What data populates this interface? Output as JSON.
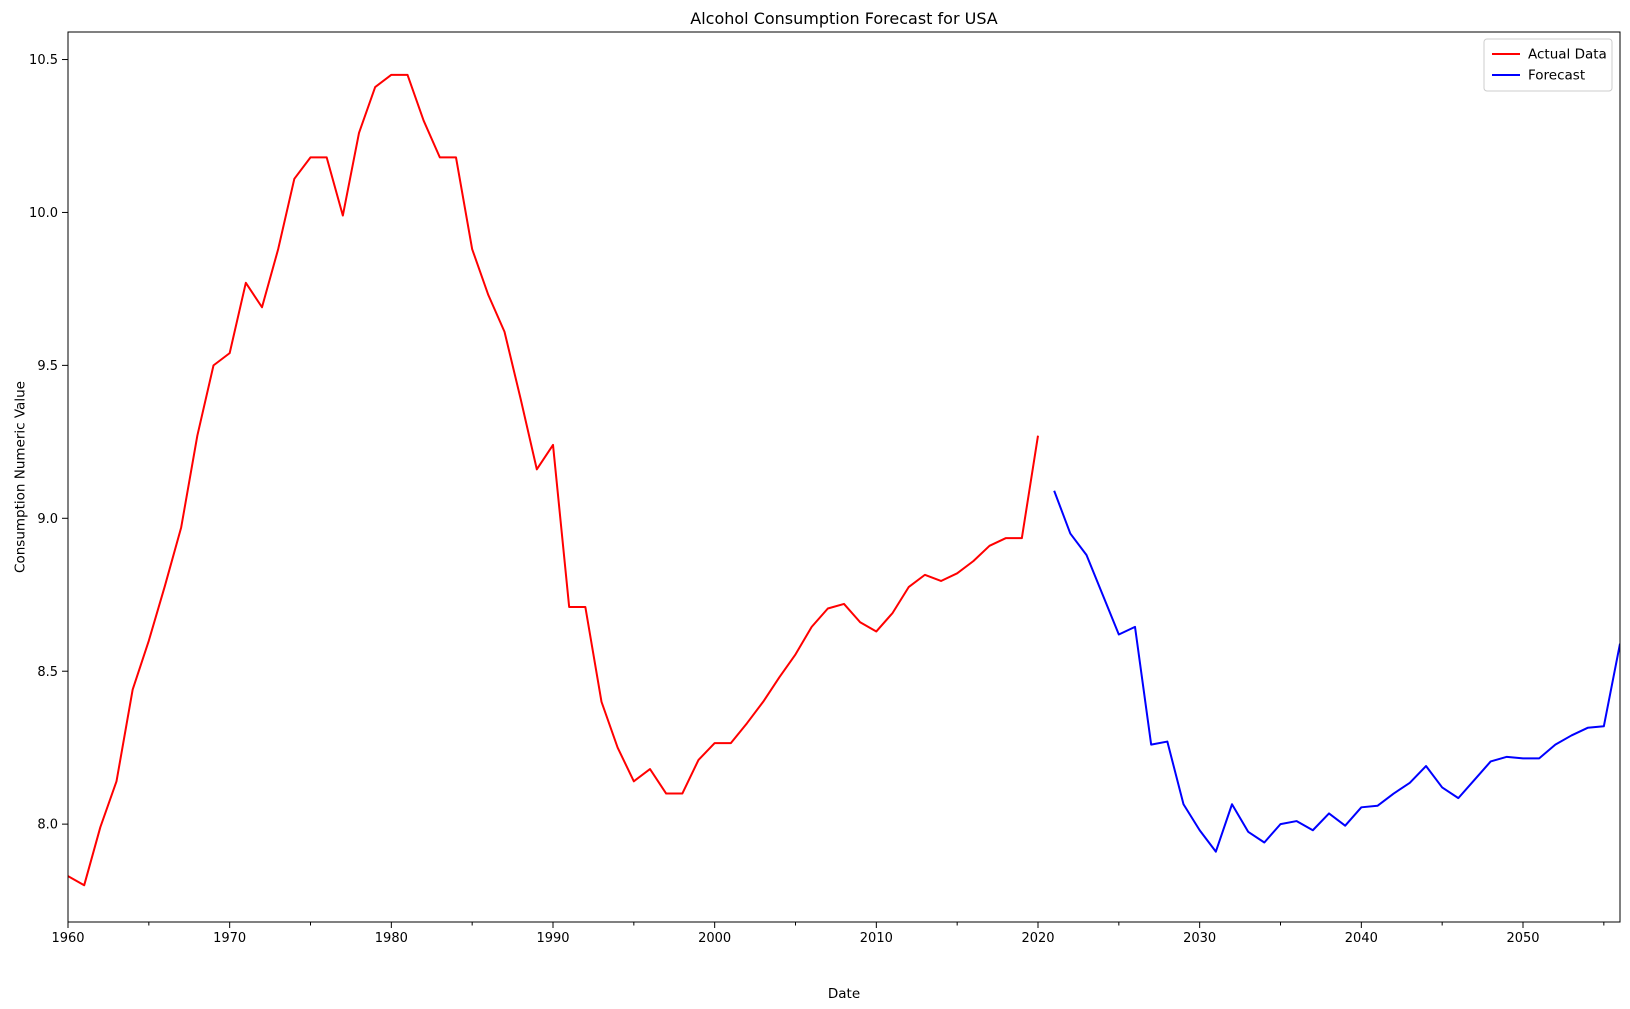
{
  "chart_data": {
    "type": "line",
    "title": "Alcohol Consumption Forecast for USA",
    "xlabel": "Date",
    "ylabel": "Consumption Numeric Value",
    "xlim": [
      1960,
      2056
    ],
    "ylim": [
      7.68,
      10.59
    ],
    "x_ticks": [
      1960,
      1970,
      1980,
      1990,
      2000,
      2010,
      2020,
      2030,
      2040,
      2050
    ],
    "x_minor_step": 5,
    "y_ticks": [
      8.0,
      8.5,
      9.0,
      9.5,
      10.0,
      10.5
    ],
    "y_tick_labels": [
      "8.0",
      "8.5",
      "9.0",
      "9.5",
      "10.0",
      "10.5"
    ],
    "grid": false,
    "legend_position": "top-right",
    "series": [
      {
        "name": "Actual Data",
        "color": "#ff0000",
        "x": [
          1960,
          1961,
          1962,
          1963,
          1964,
          1965,
          1966,
          1967,
          1968,
          1969,
          1970,
          1971,
          1972,
          1973,
          1974,
          1975,
          1976,
          1977,
          1978,
          1979,
          1980,
          1981,
          1982,
          1983,
          1984,
          1985,
          1986,
          1987,
          1988,
          1989,
          1990,
          1991,
          1992,
          1993,
          1994,
          1995,
          1996,
          1997,
          1998,
          1999,
          2000,
          2001,
          2002,
          2003,
          2004,
          2005,
          2006,
          2007,
          2008,
          2009,
          2010,
          2011,
          2012,
          2013,
          2014,
          2015,
          2016,
          2017,
          2018,
          2019,
          2020
        ],
        "values": [
          7.83,
          7.8,
          7.99,
          8.14,
          8.44,
          8.6,
          8.78,
          8.97,
          9.27,
          9.5,
          9.54,
          9.77,
          9.69,
          9.88,
          10.11,
          10.18,
          10.18,
          9.99,
          10.26,
          10.41,
          10.45,
          10.45,
          10.3,
          10.18,
          10.18,
          9.88,
          9.73,
          9.61,
          9.39,
          9.16,
          9.24,
          8.71,
          8.71,
          8.4,
          8.25,
          8.14,
          8.18,
          8.1,
          8.1,
          8.21,
          8.265,
          8.265,
          8.33,
          8.4,
          8.48,
          8.555,
          8.645,
          8.705,
          8.72,
          8.66,
          8.63,
          8.69,
          8.775,
          8.815,
          8.795,
          8.82,
          8.86,
          8.91,
          8.935,
          8.935,
          9.27
        ]
      },
      {
        "name": "Forecast",
        "color": "#0000ff",
        "x": [
          2021,
          2022,
          2023,
          2024,
          2025,
          2026,
          2027,
          2028,
          2029,
          2030,
          2031,
          2032,
          2033,
          2034,
          2035,
          2036,
          2037,
          2038,
          2039,
          2040,
          2041,
          2042,
          2043,
          2044,
          2045,
          2046,
          2047,
          2048,
          2049,
          2050,
          2051,
          2052,
          2053,
          2054,
          2055,
          2056
        ],
        "values": [
          9.09,
          8.95,
          8.88,
          8.75,
          8.62,
          8.645,
          8.26,
          8.27,
          8.065,
          7.98,
          7.91,
          8.065,
          7.975,
          7.94,
          8.0,
          8.01,
          7.98,
          8.035,
          7.995,
          8.055,
          8.06,
          8.1,
          8.135,
          8.19,
          8.12,
          8.085,
          8.145,
          8.205,
          8.22,
          8.215,
          8.215,
          8.26,
          8.29,
          8.315,
          8.32,
          8.59
        ]
      }
    ]
  }
}
